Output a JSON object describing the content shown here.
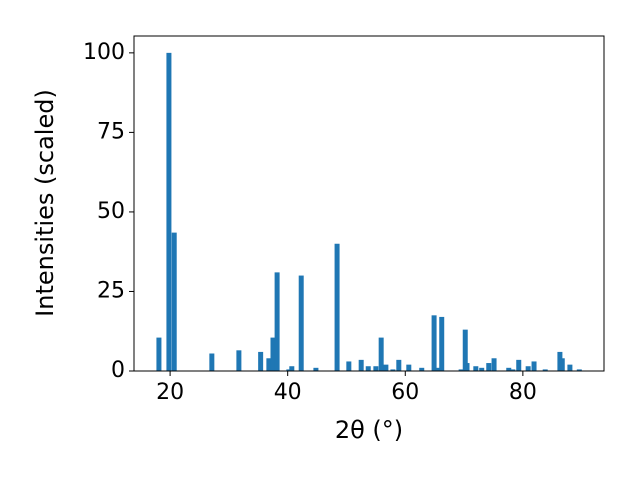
{
  "chart_data": {
    "type": "bar",
    "x_label": "2θ (°)",
    "y_label": "Intensities (scaled)",
    "x": [
      18.1,
      19.8,
      20.7,
      27.1,
      31.7,
      35.4,
      36.8,
      37.5,
      38.2,
      40.2,
      40.7,
      42.3,
      44.8,
      48.4,
      50.4,
      52.5,
      53.7,
      55.0,
      55.9,
      56.7,
      57.9,
      58.9,
      60.6,
      62.8,
      64.9,
      65.6,
      66.2,
      69.5,
      70.2,
      70.5,
      72.0,
      73.0,
      74.2,
      75.1,
      77.6,
      78.3,
      79.3,
      80.9,
      81.9,
      83.8,
      86.3,
      86.7,
      88.0,
      89.6
    ],
    "values": [
      10.5,
      100,
      43.5,
      5.5,
      6.5,
      6,
      4,
      10.5,
      31,
      0.5,
      1.5,
      30,
      1,
      40,
      3,
      3.5,
      1.5,
      1.5,
      10.5,
      2,
      0.5,
      3.5,
      2,
      1,
      17.5,
      1,
      17,
      0.5,
      13,
      2.5,
      1.5,
      1,
      2.5,
      4,
      1,
      0.5,
      3.5,
      1.5,
      3,
      0.5,
      6,
      4,
      2,
      0.5
    ],
    "color": "#1f77b4",
    "xlim": [
      13.86,
      93.8
    ],
    "xticks": [
      20,
      40,
      60,
      80
    ],
    "ylim": [
      0,
      105.3
    ],
    "yticks": [
      0,
      25,
      50,
      75,
      100
    ]
  }
}
